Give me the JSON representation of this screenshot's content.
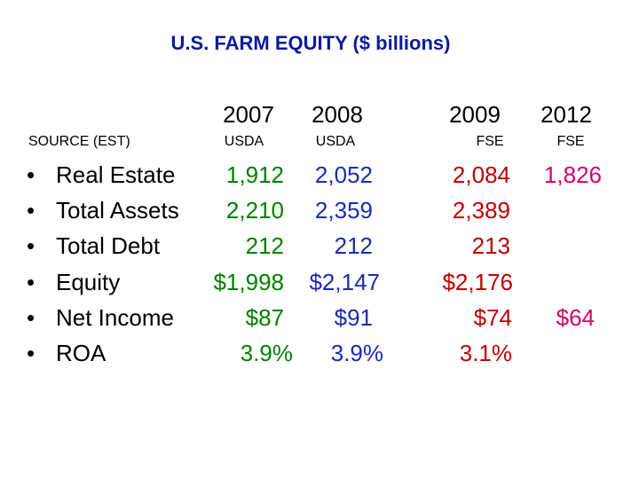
{
  "title": "U.S. FARM EQUITY ($ billions)",
  "years": [
    "2007",
    "2008",
    "2009",
    "2012"
  ],
  "source_label": "SOURCE (EST)",
  "sources": [
    "USDA",
    "USDA",
    "FSE",
    "FSE"
  ],
  "bullet": "•",
  "rows": [
    {
      "label": "Real Estate",
      "values": [
        "1,912",
        "2,052",
        "2,084",
        "1,826"
      ]
    },
    {
      "label": "Total Assets",
      "values": [
        "2,210",
        "2,359",
        "2,389",
        ""
      ]
    },
    {
      "label": "Total Debt",
      "values": [
        "212",
        "212",
        "213",
        ""
      ]
    },
    {
      "label": "Equity",
      "values": [
        "$1,998",
        "$2,147",
        "$2,176",
        ""
      ]
    },
    {
      "label": "Net Income",
      "values": [
        "$87",
        "$91",
        "$74",
        "$64"
      ]
    },
    {
      "label": "ROA",
      "values": [
        "3.9%",
        "3.9%",
        "3.1%",
        ""
      ]
    }
  ],
  "colors": {
    "title": "#0a1a9c",
    "real_estate_2007": "#008000",
    "real_estate_2008": "#1a2cb0",
    "real_estate_2009": "#c00000",
    "fse_2012": "#d4006b",
    "text": "#000000"
  }
}
